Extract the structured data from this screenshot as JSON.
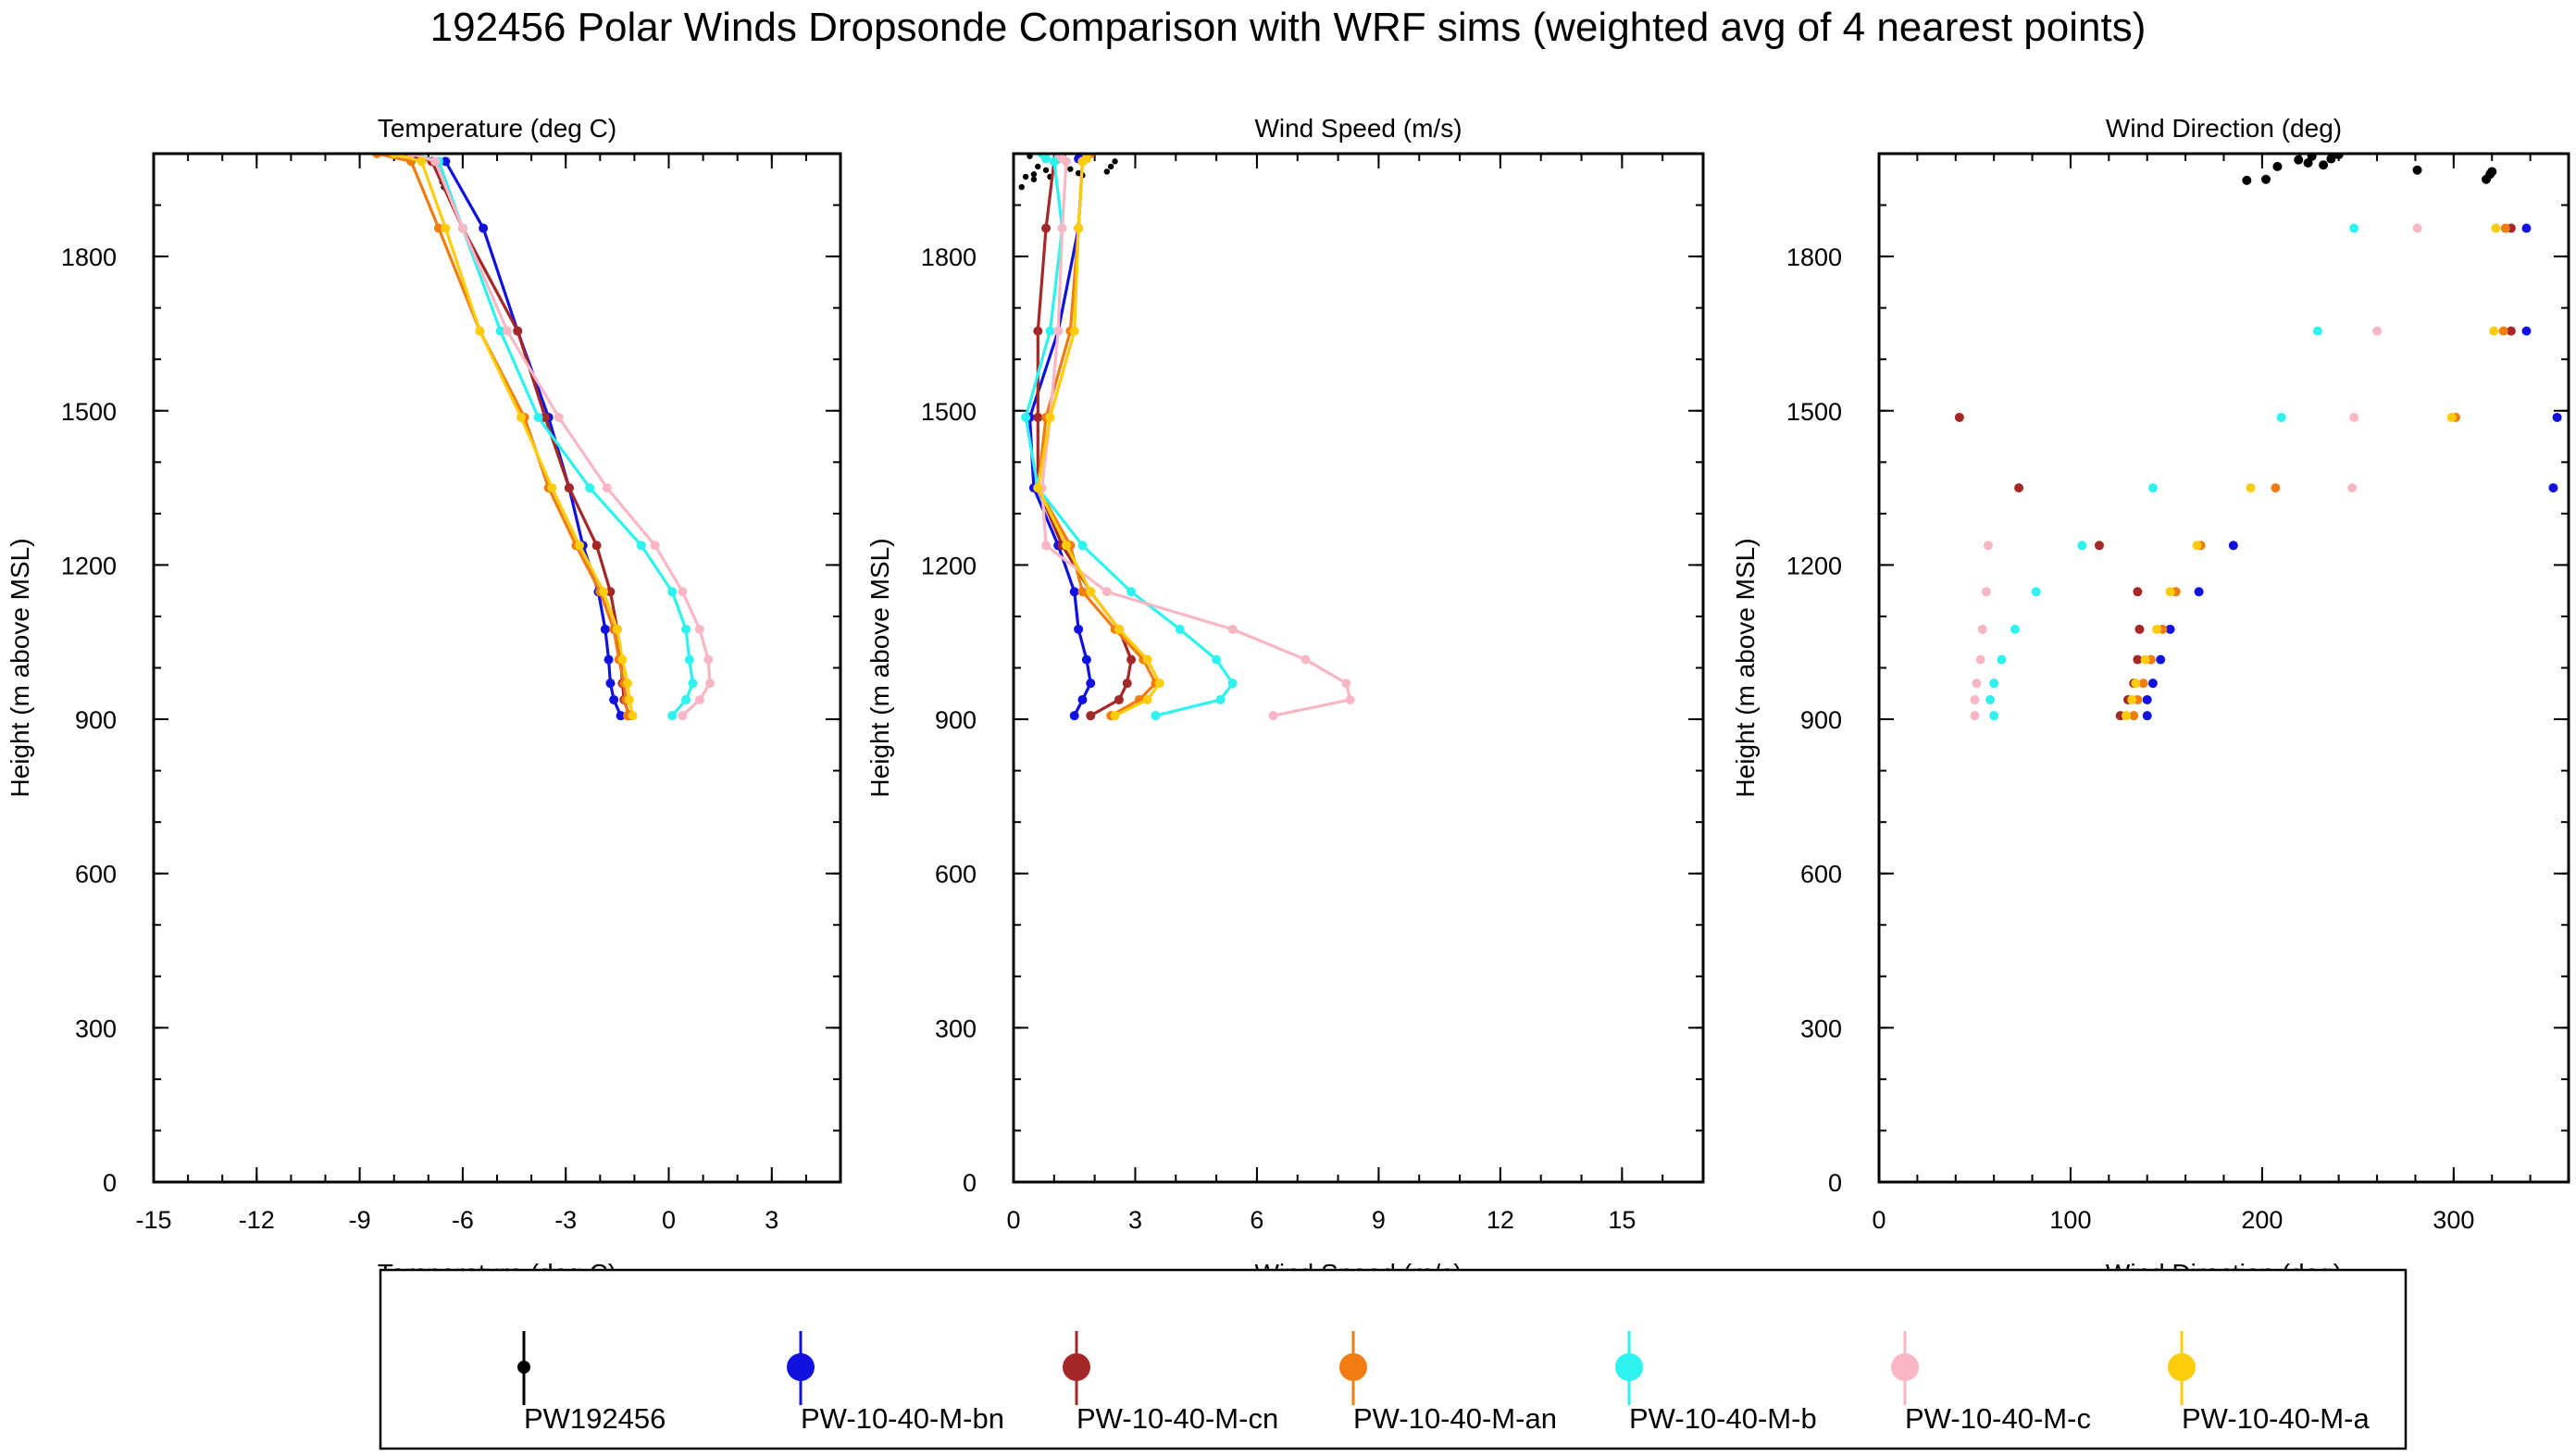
{
  "title": "192456 Polar Winds Dropsonde Comparison with WRF sims (weighted avg of 4 nearest points)",
  "colors": {
    "PW192456": "#000000",
    "PW-10-40-M-bn": "#1212e0",
    "PW-10-40-M-cn": "#a52828",
    "PW-10-40-M-an": "#f07c12",
    "PW-10-40-M-b": "#2ef2ee",
    "PW-10-40-M-c": "#f9b7c6",
    "PW-10-40-M-a": "#fdcc0b"
  },
  "legend": {
    "placement": "bottom",
    "entries": [
      "PW192456",
      "PW-10-40-M-bn",
      "PW-10-40-M-cn",
      "PW-10-40-M-an",
      "PW-10-40-M-b",
      "PW-10-40-M-c",
      "PW-10-40-M-a"
    ]
  },
  "chart_data": [
    {
      "type": "line",
      "title": "Temperature (deg C)",
      "xlabel": "Temperature (deg C)",
      "ylabel": "Height (m above MSL)",
      "xlim": [
        -15,
        5
      ],
      "ylim": [
        0,
        2000
      ],
      "xticks": [
        "-15",
        "-12",
        "-9",
        "-6",
        "-3",
        "0",
        "3"
      ],
      "yticks": [
        "0",
        "300",
        "600",
        "900",
        "1200",
        "1500",
        "1800"
      ],
      "grid": false,
      "series": [
        {
          "name": "PW192456",
          "markers_only": true,
          "x": [
            -6.8,
            -6.75,
            -6.7,
            -6.65,
            -6.6,
            -6.55
          ],
          "y": [
            1985,
            1975,
            1965,
            1955,
            1945,
            1935
          ]
        },
        {
          "name": "PW-10-40-M-bn",
          "x": [
            -1.4,
            -1.6,
            -1.7,
            -1.75,
            -1.85,
            -2.05,
            -2.5,
            -2.9,
            -3.5,
            -4.4,
            -5.4,
            -6.5,
            -8.0
          ],
          "y": [
            907,
            938,
            970,
            1016,
            1075,
            1148,
            1238,
            1350,
            1487,
            1655,
            1855,
            1985,
            2000
          ]
        },
        {
          "name": "PW-10-40-M-cn",
          "x": [
            -1.15,
            -1.3,
            -1.35,
            -1.4,
            -1.5,
            -1.7,
            -2.1,
            -2.9,
            -3.6,
            -4.4,
            -6.0,
            -6.9,
            -7.6
          ],
          "y": [
            907,
            938,
            970,
            1016,
            1075,
            1148,
            1238,
            1350,
            1487,
            1655,
            1855,
            1985,
            2000
          ]
        },
        {
          "name": "PW-10-40-M-an",
          "x": [
            -1.2,
            -1.25,
            -1.3,
            -1.45,
            -1.6,
            -2.0,
            -2.7,
            -3.5,
            -4.2,
            -5.5,
            -6.7,
            -7.5,
            -8.5
          ],
          "y": [
            907,
            938,
            970,
            1016,
            1075,
            1148,
            1238,
            1350,
            1487,
            1655,
            1855,
            1985,
            2000
          ]
        },
        {
          "name": "PW-10-40-M-b",
          "x": [
            0.1,
            0.5,
            0.7,
            0.6,
            0.5,
            0.1,
            -0.8,
            -2.3,
            -3.8,
            -4.9,
            -6.0,
            -6.7,
            -7.5
          ],
          "y": [
            907,
            938,
            970,
            1016,
            1075,
            1148,
            1238,
            1350,
            1487,
            1655,
            1855,
            1985,
            2000
          ]
        },
        {
          "name": "PW-10-40-M-c",
          "x": [
            0.4,
            0.9,
            1.2,
            1.15,
            0.9,
            0.4,
            -0.4,
            -1.8,
            -3.2,
            -4.7,
            -6.0,
            -6.8,
            -7.5
          ],
          "y": [
            907,
            938,
            970,
            1016,
            1075,
            1148,
            1238,
            1350,
            1487,
            1655,
            1855,
            1985,
            2000
          ]
        },
        {
          "name": "PW-10-40-M-a",
          "x": [
            -1.05,
            -1.15,
            -1.2,
            -1.35,
            -1.5,
            -1.9,
            -2.6,
            -3.4,
            -4.3,
            -5.5,
            -6.5,
            -7.2,
            -8.0
          ],
          "y": [
            907,
            938,
            970,
            1016,
            1075,
            1148,
            1238,
            1350,
            1487,
            1655,
            1855,
            1985,
            2000
          ]
        }
      ]
    },
    {
      "type": "line",
      "title": "Wind Speed (m/s)",
      "xlabel": "Wind Speed (m/s)",
      "ylabel": "Height (m above MSL)",
      "xlim": [
        0,
        17
      ],
      "ylim": [
        0,
        2000
      ],
      "xticks": [
        "0",
        "3",
        "6",
        "9",
        "12",
        "15"
      ],
      "yticks": [
        "0",
        "300",
        "600",
        "900",
        "1200",
        "1500",
        "1800"
      ],
      "grid": false,
      "series": [
        {
          "name": "PW192456",
          "markers_only": true,
          "x": [
            0.4,
            0.5,
            0.6,
            0.8,
            0.9,
            1.0,
            1.4,
            1.6,
            1.7,
            0.3,
            0.2,
            0.5,
            2.3,
            2.4,
            2.5,
            1.1
          ],
          "y": [
            1995,
            1960,
            1975,
            1968,
            1955,
            1985,
            1970,
            1962,
            1958,
            1955,
            1935,
            1950,
            1965,
            1975,
            1985,
            1990
          ]
        },
        {
          "name": "PW-10-40-M-bn",
          "x": [
            1.5,
            1.7,
            1.9,
            1.8,
            1.6,
            1.5,
            1.1,
            0.5,
            0.4,
            1.1,
            1.6,
            1.7,
            1.6,
            1.8
          ],
          "y": [
            907,
            938,
            970,
            1016,
            1075,
            1148,
            1238,
            1350,
            1487,
            1655,
            1855,
            1985,
            1990,
            2000
          ]
        },
        {
          "name": "PW-10-40-M-cn",
          "x": [
            1.9,
            2.6,
            2.8,
            2.9,
            2.6,
            1.9,
            1.2,
            0.6,
            0.6,
            0.6,
            0.8,
            1.0,
            1.1,
            1.2
          ],
          "y": [
            907,
            938,
            970,
            1016,
            1075,
            1148,
            1238,
            1350,
            1487,
            1655,
            1855,
            1985,
            1990,
            2000
          ]
        },
        {
          "name": "PW-10-40-M-an",
          "x": [
            2.4,
            3.1,
            3.5,
            3.2,
            2.5,
            1.7,
            1.4,
            0.6,
            0.8,
            1.4,
            1.6,
            1.7,
            1.8,
            1.9
          ],
          "y": [
            907,
            938,
            970,
            1016,
            1075,
            1148,
            1238,
            1350,
            1487,
            1655,
            1855,
            1985,
            1990,
            2000
          ]
        },
        {
          "name": "PW-10-40-M-b",
          "x": [
            3.5,
            5.1,
            5.4,
            5.0,
            4.1,
            2.9,
            1.7,
            0.6,
            0.3,
            0.9,
            1.2,
            1.0,
            0.8,
            0.7
          ],
          "y": [
            907,
            938,
            970,
            1016,
            1075,
            1148,
            1238,
            1350,
            1487,
            1655,
            1855,
            1985,
            1990,
            2000
          ]
        },
        {
          "name": "PW-10-40-M-c",
          "x": [
            6.4,
            8.3,
            8.2,
            7.2,
            5.4,
            2.3,
            0.8,
            0.7,
            0.9,
            1.1,
            1.2,
            1.3,
            1.2,
            1.1
          ],
          "y": [
            907,
            938,
            970,
            1016,
            1075,
            1148,
            1238,
            1350,
            1487,
            1655,
            1855,
            1985,
            1990,
            2000
          ]
        },
        {
          "name": "PW-10-40-M-a",
          "x": [
            2.5,
            3.3,
            3.6,
            3.3,
            2.6,
            1.9,
            1.3,
            0.6,
            0.9,
            1.5,
            1.6,
            1.7,
            1.8,
            1.8
          ],
          "y": [
            907,
            938,
            970,
            1016,
            1075,
            1148,
            1238,
            1350,
            1487,
            1655,
            1855,
            1985,
            1990,
            2000
          ]
        }
      ]
    },
    {
      "type": "scatter",
      "title": "Wind Direction (deg)",
      "xlabel": "Wind Direction (deg)",
      "ylabel": "Height (m above MSL)",
      "xlim": [
        0,
        360
      ],
      "ylim": [
        0,
        2000
      ],
      "xticks": [
        "0",
        "100",
        "200",
        "300"
      ],
      "yticks": [
        "0",
        "300",
        "600",
        "900",
        "1200",
        "1500",
        "1800"
      ],
      "grid": false,
      "series": [
        {
          "name": "PW192456",
          "x": [
            192,
            202,
            208,
            219,
            224,
            226,
            232,
            236,
            240,
            281,
            317,
            319,
            320
          ],
          "y": [
            1948,
            1950,
            1975,
            1988,
            1982,
            1995,
            1978,
            1990,
            1998,
            1968,
            1950,
            1960,
            1965
          ]
        },
        {
          "name": "PW-10-40-M-bn",
          "x": [
            140,
            140,
            143,
            147,
            152,
            167,
            185,
            352,
            354,
            338,
            338
          ],
          "y": [
            907,
            938,
            970,
            1016,
            1075,
            1148,
            1238,
            1350,
            1487,
            1655,
            1855
          ]
        },
        {
          "name": "PW-10-40-M-cn",
          "x": [
            126,
            130,
            133,
            135,
            136,
            135,
            115,
            73,
            42,
            330,
            330
          ],
          "y": [
            907,
            938,
            970,
            1016,
            1075,
            1148,
            1238,
            1350,
            1487,
            1655,
            1855
          ]
        },
        {
          "name": "PW-10-40-M-an",
          "x": [
            133,
            135,
            138,
            142,
            148,
            155,
            168,
            207,
            301,
            326,
            327
          ],
          "y": [
            907,
            938,
            970,
            1016,
            1075,
            1148,
            1238,
            1350,
            1487,
            1655,
            1855
          ]
        },
        {
          "name": "PW-10-40-M-b",
          "x": [
            60,
            58,
            60,
            64,
            71,
            82,
            106,
            143,
            210,
            229,
            248
          ],
          "y": [
            907,
            938,
            970,
            1016,
            1075,
            1148,
            1238,
            1350,
            1487,
            1655,
            1855
          ]
        },
        {
          "name": "PW-10-40-M-c",
          "x": [
            50,
            50,
            51,
            53,
            54,
            56,
            57,
            247,
            248,
            260,
            281
          ],
          "y": [
            907,
            938,
            970,
            1016,
            1075,
            1148,
            1238,
            1350,
            1487,
            1655,
            1855
          ]
        },
        {
          "name": "PW-10-40-M-a",
          "x": [
            129,
            132,
            134,
            139,
            145,
            152,
            166,
            194,
            299,
            321,
            322
          ],
          "y": [
            907,
            938,
            970,
            1016,
            1075,
            1148,
            1238,
            1350,
            1487,
            1655,
            1855
          ]
        }
      ]
    }
  ]
}
